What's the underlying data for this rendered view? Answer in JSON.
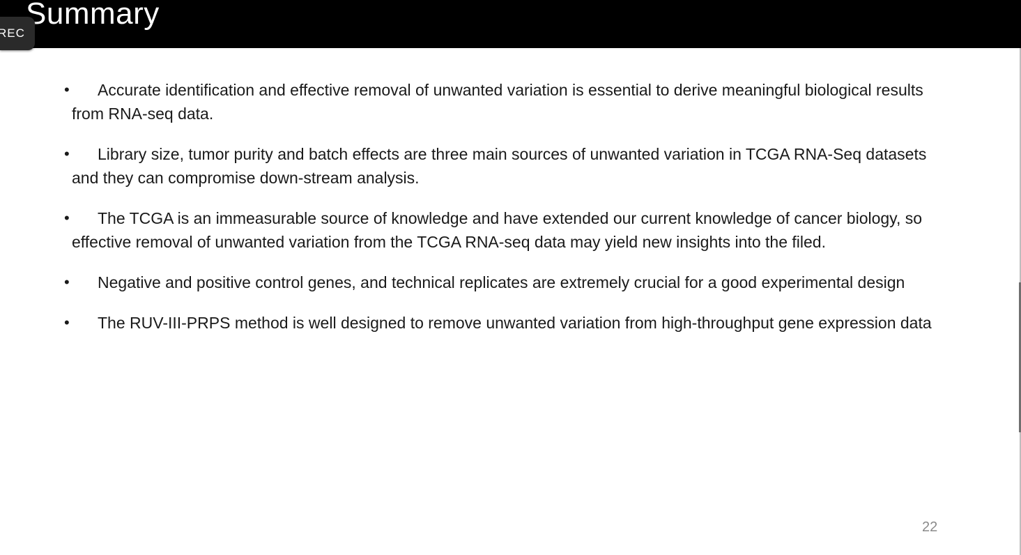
{
  "slide": {
    "title": "Summary",
    "page_number": "22",
    "bullets": [
      "Accurate identification and effective removal of unwanted variation is essential to derive meaningful biological results from RNA-seq data.",
      "Library size, tumor purity and batch effects are three main sources of unwanted variation in TCGA RNA-Seq datasets and they can compromise down-stream analysis.",
      "The TCGA is an immeasurable source of knowledge and have extended our current knowledge of cancer biology, so effective removal of unwanted variation from the TCGA RNA-seq data may yield new insights into the filed.",
      "Negative and positive control genes, and technical replicates are extremely crucial for a good experimental design",
      "The RUV-III-PRPS method is well designed to remove unwanted variation from high-throughput gene expression data"
    ],
    "bullet_symbol": "•"
  },
  "overlay": {
    "rec_label": "REC"
  },
  "colors": {
    "title_bar": "#000000",
    "title_text": "#ffffff",
    "body_text": "#1a1a1a",
    "page_number": "#8a8a8a",
    "rec_badge": "#2a2a2a"
  }
}
